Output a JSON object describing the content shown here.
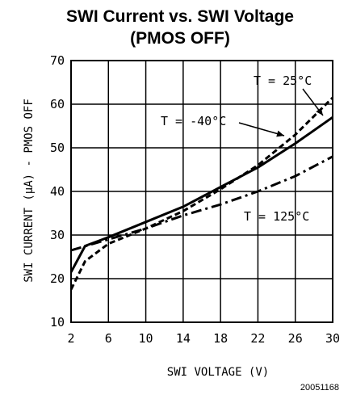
{
  "figure_id": "20051168",
  "chart_data": {
    "type": "line",
    "title": "SWI Current vs. SWI Voltage",
    "subtitle": "(PMOS OFF)",
    "xlabel": "SWI VOLTAGE (V)",
    "ylabel": "SWI CURRENT (μA) - PMOS OFF",
    "xlim": [
      2,
      30
    ],
    "ylim": [
      10,
      70
    ],
    "x_ticks": [
      2,
      6,
      10,
      14,
      18,
      22,
      26,
      30
    ],
    "x_tick_labels": [
      "2",
      "6",
      "10",
      "14",
      "18",
      "22",
      "26",
      "30"
    ],
    "y_ticks": [
      10,
      20,
      30,
      40,
      50,
      60,
      70
    ],
    "y_tick_labels": [
      "10",
      "20",
      "30",
      "40",
      "50",
      "60",
      "70"
    ],
    "grid": true,
    "series": [
      {
        "name": "T = 25°C",
        "style": "solid",
        "x": [
          2,
          3.5,
          6,
          10,
          14,
          18,
          22,
          26,
          30
        ],
        "y": [
          21.5,
          27.5,
          29.5,
          33,
          36.5,
          41,
          45.5,
          51,
          57
        ]
      },
      {
        "name": "T = -40°C",
        "style": "short-dash",
        "x": [
          2,
          3.5,
          6,
          10,
          14,
          18,
          22,
          26,
          30
        ],
        "y": [
          17.5,
          24,
          28,
          31.5,
          35.5,
          40.5,
          46,
          53,
          61.5
        ]
      },
      {
        "name": "T = 125°C",
        "style": "dash-dot",
        "x": [
          2,
          6,
          10,
          14,
          18,
          22,
          26,
          30
        ],
        "y": [
          26.5,
          29,
          31.5,
          34.5,
          37,
          40,
          43.5,
          48
        ]
      }
    ],
    "annotations": [
      {
        "text": "T = 25°C",
        "series": 0
      },
      {
        "text": "T = -40°C",
        "series": 1
      },
      {
        "text": "T = 125°C",
        "series": 2
      }
    ]
  }
}
